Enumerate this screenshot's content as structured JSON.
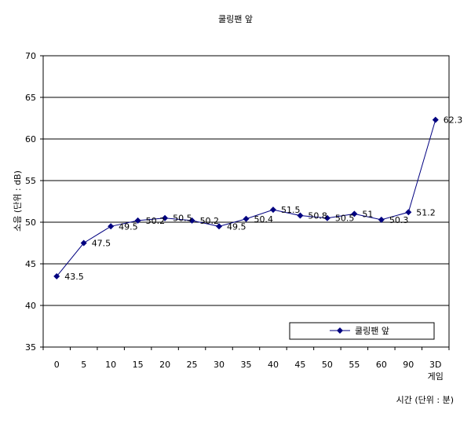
{
  "chart_data": {
    "type": "line",
    "title": "쿨링팬 앞",
    "xlabel": "시간 (단위 : 분)",
    "ylabel": "소음 (단위 : dB)",
    "ylim": [
      35,
      70
    ],
    "yticks": [
      35,
      40,
      45,
      50,
      55,
      60,
      65,
      70
    ],
    "grid": true,
    "legend": "bottom-right",
    "categories": [
      "0",
      "5",
      "10",
      "15",
      "20",
      "25",
      "30",
      "35",
      "40",
      "45",
      "50",
      "55",
      "60",
      "90",
      "3D\n게임"
    ],
    "series": [
      {
        "name": "쿨링팬 앞",
        "color": "#000080",
        "values": [
          43.5,
          47.5,
          49.5,
          50.2,
          50.5,
          50.2,
          49.5,
          50.4,
          51.5,
          50.8,
          50.5,
          51,
          50.3,
          51.2,
          62.3
        ]
      }
    ]
  }
}
